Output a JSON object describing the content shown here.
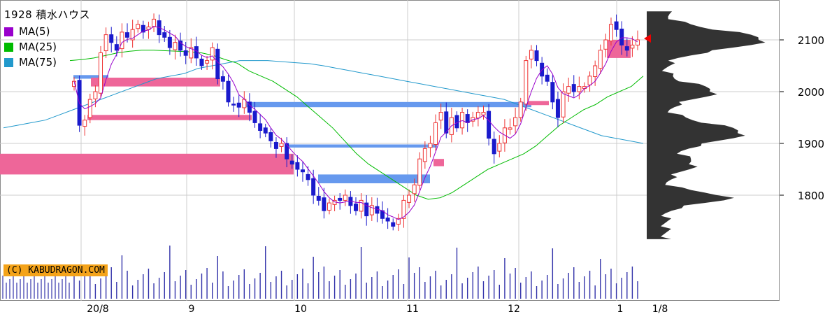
{
  "chart_data": {
    "type": "candlestick",
    "title": "1928 積水ハウス",
    "legend": [
      {
        "label": "MA(5)",
        "color": "#9900cc"
      },
      {
        "label": "MA(25)",
        "color": "#00bb00"
      },
      {
        "label": "MA(75)",
        "color": "#2299cc"
      }
    ],
    "copyright": "(C) KABUDRAGON.COM",
    "y_axis": {
      "ticks": [
        1800,
        1900,
        2000,
        2100
      ],
      "ylim": [
        1705,
        2165
      ],
      "side": "right"
    },
    "x_axis": {
      "labels": [
        "20/8",
        "9",
        "10",
        "11",
        "12",
        "1",
        "1/8"
      ]
    },
    "colors": {
      "up": "#ee3333",
      "down": "#1a1acc",
      "shade_up": "#ee6699",
      "shade_down": "#6699ee",
      "profile": "#333333",
      "marker": "#ee0000",
      "volume": "#3333aa"
    },
    "current_price": 2100,
    "candles_approx": {
      "start": "2020-08-04",
      "end": "2021-01-08",
      "days": 107,
      "closes": [
        2020,
        1935,
        1945,
        1985,
        2000,
        2075,
        2110,
        2095,
        2080,
        2115,
        2105,
        2120,
        2130,
        2115,
        2125,
        2140,
        2110,
        2105,
        2085,
        2095,
        2080,
        2070,
        2085,
        2065,
        2050,
        2060,
        2085,
        2025,
        2020,
        1980,
        1975,
        1970,
        1985,
        1960,
        1940,
        1925,
        1920,
        1905,
        1890,
        1900,
        1870,
        1860,
        1850,
        1845,
        1830,
        1800,
        1790,
        1770,
        1785,
        1790,
        1790,
        1800,
        1780,
        1770,
        1790,
        1760,
        1780,
        1765,
        1755,
        1750,
        1740,
        1755,
        1790,
        1800,
        1820,
        1870,
        1890,
        1900,
        1940,
        1960,
        1920,
        1950,
        1930,
        1960,
        1940,
        1950,
        1960,
        1960,
        1910,
        1880,
        1900,
        1930,
        1930,
        1950,
        1980,
        2060,
        2080,
        2060,
        2030,
        2020,
        1980,
        1950,
        2000,
        2010,
        2000,
        2010,
        2010,
        2030,
        2050,
        2080,
        2100,
        2130,
        2120,
        2090,
        2080,
        2090,
        2100
      ]
    },
    "ma_approx": {
      "ma75": [
        1930,
        1935,
        1940,
        1945,
        1955,
        1965,
        1975,
        1985,
        1995,
        2005,
        2015,
        2025,
        2030,
        2035,
        2045,
        2050,
        2055,
        2060,
        2060,
        2060,
        2058,
        2056,
        2054,
        2050,
        2045,
        2040,
        2035,
        2030,
        2025,
        2020,
        2015,
        2010,
        2005,
        2000,
        1995,
        1990,
        1985,
        1975,
        1965,
        1955,
        1945,
        1935,
        1925,
        1915,
        1910,
        1905,
        1900
      ],
      "ma25": [
        2060,
        2062,
        2065,
        2070,
        2075,
        2078,
        2080,
        2080,
        2079,
        2078,
        2077,
        2075,
        2070,
        2062,
        2055,
        2040,
        2030,
        2020,
        2005,
        1990,
        1970,
        1950,
        1930,
        1905,
        1880,
        1860,
        1845,
        1830,
        1815,
        1800,
        1792,
        1795,
        1805,
        1820,
        1835,
        1850,
        1860,
        1870,
        1880,
        1895,
        1915,
        1935,
        1950,
        1965,
        1975,
        1990,
        2000,
        2010,
        2030
      ]
    },
    "volume_profile_note": "horizontal price-volume distribution at right"
  }
}
